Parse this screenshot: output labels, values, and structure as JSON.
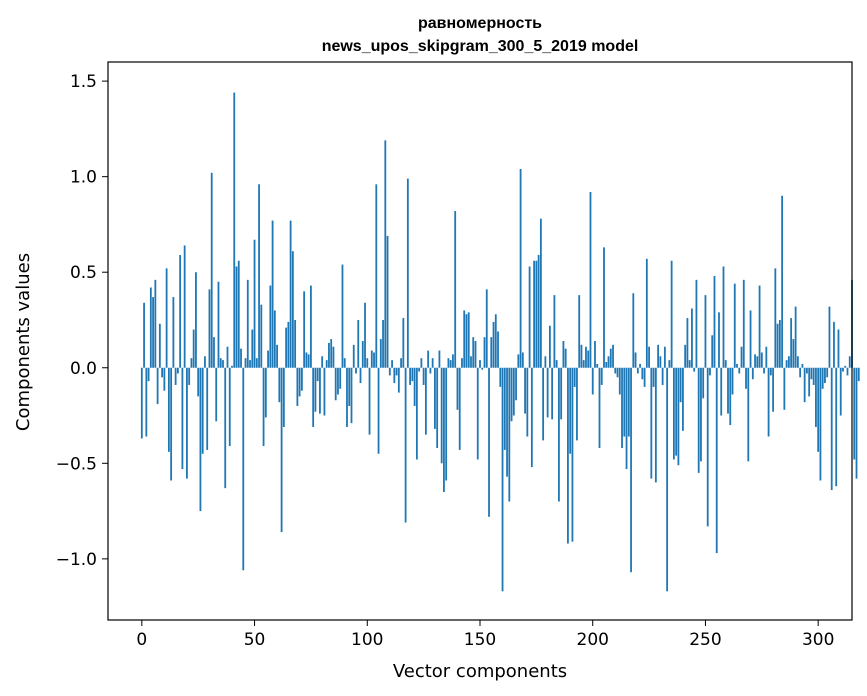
{
  "chart_data": {
    "type": "bar",
    "title_line1": "равномерность",
    "title_line2": "news_upos_skipgram_300_5_2019 model",
    "xlabel": "Vector components",
    "ylabel": "Components values",
    "xlim": [
      -15,
      315
    ],
    "ylim": [
      -1.32,
      1.6
    ],
    "xticks": [
      0,
      50,
      100,
      150,
      200,
      250,
      300
    ],
    "xtick_labels": [
      "0",
      "50",
      "100",
      "150",
      "200",
      "250",
      "300"
    ],
    "yticks": [
      1.5,
      1.0,
      0.5,
      0.0,
      -0.5,
      -1.0
    ],
    "ytick_labels": [
      "1.5",
      "1.0",
      "0.5",
      "0.0",
      "−0.5",
      "−1.0"
    ],
    "bar_color": "#1f77b4",
    "grid": false,
    "values": [
      -0.37,
      0.34,
      -0.36,
      -0.07,
      0.42,
      0.37,
      0.46,
      -0.19,
      0.23,
      -0.05,
      -0.12,
      0.52,
      -0.44,
      -0.59,
      0.37,
      -0.09,
      -0.03,
      0.59,
      -0.53,
      0.64,
      -0.58,
      -0.09,
      0.05,
      0.2,
      0.5,
      -0.15,
      -0.75,
      -0.45,
      0.06,
      -0.43,
      0.41,
      1.02,
      0.16,
      -0.28,
      0.45,
      0.05,
      0.04,
      -0.63,
      0.11,
      -0.41,
      0.01,
      1.44,
      0.53,
      0.56,
      0.1,
      -1.06,
      0.05,
      0.46,
      0.04,
      0.2,
      0.67,
      0.05,
      0.96,
      0.33,
      -0.41,
      -0.26,
      0.09,
      0.43,
      0.77,
      0.3,
      0.12,
      -0.18,
      -0.86,
      -0.31,
      0.21,
      0.24,
      0.77,
      0.61,
      0.25,
      -0.2,
      -0.15,
      -0.12,
      0.4,
      0.08,
      0.07,
      0.43,
      -0.31,
      -0.23,
      -0.07,
      -0.24,
      0.06,
      -0.25,
      0.04,
      0.13,
      0.15,
      0.11,
      -0.17,
      -0.14,
      -0.11,
      0.54,
      0.05,
      -0.31,
      -0.2,
      -0.29,
      0.12,
      -0.03,
      0.25,
      -0.08,
      0.14,
      0.34,
      0.05,
      -0.35,
      0.09,
      0.08,
      0.96,
      -0.45,
      0.15,
      0.25,
      1.19,
      0.69,
      -0.04,
      0.04,
      -0.08,
      -0.04,
      -0.13,
      0.05,
      0.26,
      -0.81,
      0.99,
      -0.09,
      -0.07,
      -0.2,
      -0.48,
      -0.02,
      0.05,
      -0.09,
      -0.35,
      0.09,
      -0.03,
      0.05,
      -0.32,
      -0.42,
      0.09,
      -0.5,
      -0.65,
      -0.59,
      0.05,
      0.04,
      0.07,
      0.82,
      -0.22,
      -0.43,
      0.05,
      0.3,
      0.28,
      0.29,
      0.06,
      0.16,
      0.14,
      -0.48,
      0.04,
      -0.01,
      0.16,
      0.41,
      -0.78,
      0.16,
      0.24,
      0.28,
      0.19,
      -0.1,
      -1.17,
      -0.43,
      -0.57,
      -0.7,
      -0.28,
      -0.25,
      -0.17,
      0.07,
      1.04,
      0.08,
      -0.24,
      -0.36,
      0.53,
      -0.52,
      0.56,
      0.56,
      0.59,
      0.78,
      -0.38,
      0.06,
      -0.26,
      0.22,
      -0.27,
      0.38,
      0.04,
      -0.7,
      -0.27,
      0.14,
      0.1,
      -0.92,
      -0.45,
      -0.91,
      -0.1,
      -0.38,
      0.38,
      0.12,
      0.04,
      0.11,
      0.09,
      0.92,
      -0.14,
      0.14,
      0.02,
      -0.42,
      -0.09,
      0.63,
      0.03,
      0.06,
      0.1,
      0.12,
      -0.03,
      -0.05,
      -0.14,
      -0.42,
      -0.36,
      -0.53,
      -0.36,
      -1.07,
      0.39,
      0.08,
      -0.03,
      0.02,
      -0.06,
      -0.1,
      0.57,
      0.11,
      -0.58,
      -0.1,
      -0.6,
      0.12,
      0.06,
      -0.09,
      0.11,
      -1.17,
      0.04,
      0.56,
      -0.48,
      -0.46,
      -0.51,
      -0.18,
      -0.33,
      0.12,
      0.26,
      0.04,
      0.31,
      -0.02,
      0.46,
      -0.55,
      -0.49,
      -0.16,
      0.38,
      -0.83,
      -0.04,
      0.17,
      0.48,
      -0.97,
      0.29,
      -0.25,
      0.53,
      0.04,
      -0.24,
      -0.3,
      -0.14,
      0.44,
      0.02,
      -0.03,
      0.11,
      0.46,
      -0.11,
      -0.49,
      0.3,
      -0.06,
      0.07,
      0.06,
      0.43,
      0.08,
      -0.03,
      0.11,
      -0.36,
      -0.04,
      -0.23,
      0.52,
      0.23,
      0.25,
      0.9,
      -0.22,
      0.04,
      0.06,
      0.26,
      0.15,
      0.32,
      0.06,
      -0.05,
      0.02,
      -0.18,
      -0.03,
      -0.15,
      -0.06,
      -0.09,
      -0.31,
      -0.44,
      -0.59,
      -0.11,
      -0.08,
      -0.05,
      0.32,
      -0.64,
      0.24,
      -0.62,
      0.2,
      -0.25,
      -0.02,
      0.01,
      -0.04,
      0.06,
      0.46,
      -0.48,
      -0.58,
      -0.07
    ]
  }
}
